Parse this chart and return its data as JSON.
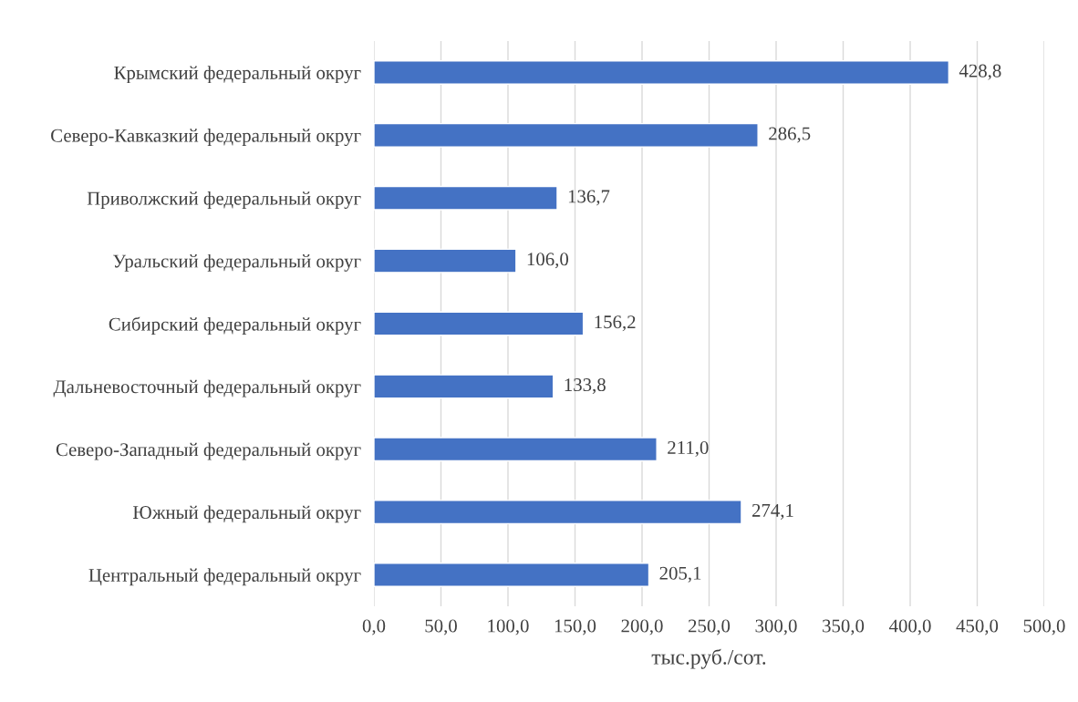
{
  "chart_data": {
    "type": "bar",
    "orientation": "horizontal",
    "xlabel": "тыс.руб./сот.",
    "categories": [
      "Крымский федеральный округ",
      "Северо-Кавказкий федеральный округ",
      "Приволжский федеральный округ",
      "Уральский федеральный округ",
      "Сибирский федеральный округ",
      "Дальневосточный федеральный округ",
      "Северо-Западный федеральный округ",
      "Южный федеральный округ",
      "Центральный федеральный округ"
    ],
    "values": [
      428.8,
      286.5,
      136.7,
      106.0,
      156.2,
      133.8,
      211.0,
      274.1,
      205.1
    ],
    "value_labels": [
      "428,8",
      "286,5",
      "136,7",
      "106,0",
      "156,2",
      "133,8",
      "211,0",
      "274,1",
      "205,1"
    ],
    "color": "#4472c4",
    "xlim": [
      0,
      500
    ],
    "xticks": [
      {
        "value": 0,
        "label": "0,0"
      },
      {
        "value": 50,
        "label": "50,0"
      },
      {
        "value": 100,
        "label": "100,0"
      },
      {
        "value": 150,
        "label": "150,0"
      },
      {
        "value": 200,
        "label": "200,0"
      },
      {
        "value": 250,
        "label": "250,0"
      },
      {
        "value": 300,
        "label": "300,0"
      },
      {
        "value": 350,
        "label": "350,0"
      },
      {
        "value": 400,
        "label": "400,0"
      },
      {
        "value": 450,
        "label": "450,0"
      },
      {
        "value": 500,
        "label": "500,0"
      }
    ],
    "grid": "x",
    "legend": false
  }
}
